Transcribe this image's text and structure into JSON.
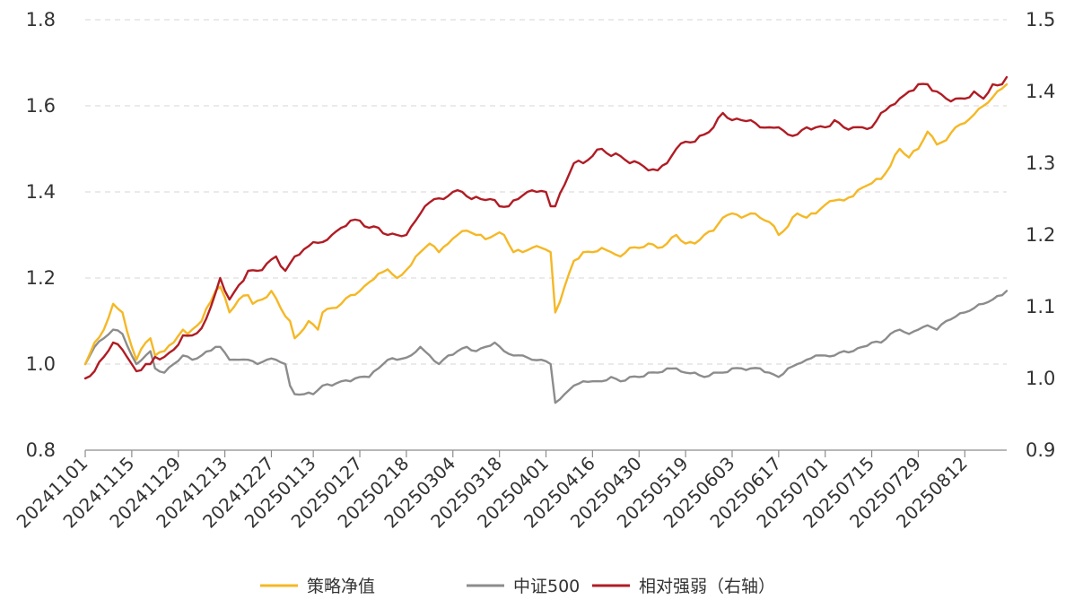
{
  "chart_data": {
    "type": "line",
    "title": "",
    "xlabel": "",
    "ylabel": "",
    "y_left": {
      "range": [
        0.8,
        1.8
      ],
      "ticks": [
        "0.8",
        "1.0",
        "1.2",
        "1.4",
        "1.6",
        "1.8"
      ]
    },
    "y_right": {
      "range": [
        0.9,
        1.5
      ],
      "ticks": [
        "0.9",
        "1.0",
        "1.1",
        "1.2",
        "1.3",
        "1.4",
        "1.5"
      ]
    },
    "grid": "horizontal dashed",
    "legend_position": "bottom",
    "x_tick_labels": [
      "20241101",
      "20241115",
      "20241129",
      "20241213",
      "20241227",
      "20250113",
      "20250127",
      "20250218",
      "20250304",
      "20250318",
      "20250401",
      "20250416",
      "20250430",
      "20250519",
      "20250603",
      "20250617",
      "20250701",
      "20250715",
      "20250729",
      "20250812"
    ],
    "x_tick_index": [
      0,
      10,
      20,
      30,
      40,
      49,
      59,
      69,
      79,
      89,
      99,
      109,
      119,
      129,
      139,
      149,
      159,
      169,
      179,
      189
    ],
    "n_points": 199,
    "series": [
      {
        "name": "策略净值",
        "axis": "left",
        "color": "#f5b825",
        "keypoints": [
          [
            0,
            1.0
          ],
          [
            2,
            1.05
          ],
          [
            4,
            1.08
          ],
          [
            6,
            1.14
          ],
          [
            8,
            1.12
          ],
          [
            10,
            1.04
          ],
          [
            11,
            1.01
          ],
          [
            13,
            1.05
          ],
          [
            14,
            1.06
          ],
          [
            15,
            1.02
          ],
          [
            17,
            1.03
          ],
          [
            19,
            1.05
          ],
          [
            21,
            1.08
          ],
          [
            22,
            1.07
          ],
          [
            25,
            1.1
          ],
          [
            28,
            1.17
          ],
          [
            29,
            1.18
          ],
          [
            31,
            1.12
          ],
          [
            33,
            1.15
          ],
          [
            35,
            1.16
          ],
          [
            36,
            1.14
          ],
          [
            38,
            1.15
          ],
          [
            40,
            1.17
          ],
          [
            42,
            1.13
          ],
          [
            44,
            1.1
          ],
          [
            45,
            1.06
          ],
          [
            46,
            1.07
          ],
          [
            48,
            1.1
          ],
          [
            50,
            1.08
          ],
          [
            51,
            1.12
          ],
          [
            53,
            1.13
          ],
          [
            55,
            1.14
          ],
          [
            57,
            1.16
          ],
          [
            59,
            1.17
          ],
          [
            61,
            1.19
          ],
          [
            63,
            1.21
          ],
          [
            65,
            1.22
          ],
          [
            67,
            1.2
          ],
          [
            70,
            1.23
          ],
          [
            72,
            1.26
          ],
          [
            74,
            1.28
          ],
          [
            76,
            1.26
          ],
          [
            78,
            1.28
          ],
          [
            80,
            1.3
          ],
          [
            82,
            1.31
          ],
          [
            84,
            1.3
          ],
          [
            86,
            1.29
          ],
          [
            88,
            1.3
          ],
          [
            90,
            1.3
          ],
          [
            92,
            1.26
          ],
          [
            94,
            1.26
          ],
          [
            96,
            1.27
          ],
          [
            98,
            1.27
          ],
          [
            100,
            1.26
          ],
          [
            101,
            1.12
          ],
          [
            103,
            1.18
          ],
          [
            105,
            1.24
          ],
          [
            107,
            1.26
          ],
          [
            109,
            1.26
          ],
          [
            111,
            1.27
          ],
          [
            113,
            1.26
          ],
          [
            115,
            1.25
          ],
          [
            117,
            1.27
          ],
          [
            119,
            1.27
          ],
          [
            121,
            1.28
          ],
          [
            123,
            1.27
          ],
          [
            125,
            1.28
          ],
          [
            127,
            1.3
          ],
          [
            129,
            1.28
          ],
          [
            131,
            1.28
          ],
          [
            133,
            1.3
          ],
          [
            135,
            1.31
          ],
          [
            137,
            1.34
          ],
          [
            139,
            1.35
          ],
          [
            141,
            1.34
          ],
          [
            143,
            1.35
          ],
          [
            145,
            1.34
          ],
          [
            147,
            1.33
          ],
          [
            149,
            1.3
          ],
          [
            151,
            1.32
          ],
          [
            153,
            1.35
          ],
          [
            155,
            1.34
          ],
          [
            157,
            1.35
          ],
          [
            159,
            1.37
          ],
          [
            161,
            1.38
          ],
          [
            163,
            1.38
          ],
          [
            165,
            1.39
          ],
          [
            167,
            1.41
          ],
          [
            169,
            1.42
          ],
          [
            171,
            1.43
          ],
          [
            173,
            1.46
          ],
          [
            175,
            1.5
          ],
          [
            177,
            1.48
          ],
          [
            179,
            1.5
          ],
          [
            181,
            1.54
          ],
          [
            183,
            1.51
          ],
          [
            185,
            1.52
          ],
          [
            187,
            1.55
          ],
          [
            189,
            1.56
          ],
          [
            191,
            1.58
          ],
          [
            193,
            1.6
          ],
          [
            195,
            1.62
          ],
          [
            197,
            1.64
          ],
          [
            198,
            1.65
          ]
        ]
      },
      {
        "name": "中证500",
        "axis": "left",
        "color": "#8c8c8c",
        "keypoints": [
          [
            0,
            1.0
          ],
          [
            2,
            1.04
          ],
          [
            4,
            1.06
          ],
          [
            6,
            1.08
          ],
          [
            8,
            1.07
          ],
          [
            10,
            1.02
          ],
          [
            11,
            1.0
          ],
          [
            13,
            1.02
          ],
          [
            14,
            1.03
          ],
          [
            15,
            0.99
          ],
          [
            17,
            0.98
          ],
          [
            19,
            1.0
          ],
          [
            21,
            1.02
          ],
          [
            23,
            1.01
          ],
          [
            25,
            1.02
          ],
          [
            28,
            1.04
          ],
          [
            29,
            1.04
          ],
          [
            31,
            1.01
          ],
          [
            33,
            1.01
          ],
          [
            35,
            1.01
          ],
          [
            37,
            1.0
          ],
          [
            39,
            1.01
          ],
          [
            41,
            1.01
          ],
          [
            43,
            1.0
          ],
          [
            44,
            0.95
          ],
          [
            45,
            0.93
          ],
          [
            47,
            0.93
          ],
          [
            49,
            0.93
          ],
          [
            51,
            0.95
          ],
          [
            53,
            0.95
          ],
          [
            55,
            0.96
          ],
          [
            57,
            0.96
          ],
          [
            59,
            0.97
          ],
          [
            61,
            0.97
          ],
          [
            63,
            0.99
          ],
          [
            65,
            1.01
          ],
          [
            67,
            1.01
          ],
          [
            70,
            1.02
          ],
          [
            72,
            1.04
          ],
          [
            74,
            1.02
          ],
          [
            76,
            1.0
          ],
          [
            78,
            1.02
          ],
          [
            80,
            1.03
          ],
          [
            82,
            1.04
          ],
          [
            84,
            1.03
          ],
          [
            86,
            1.04
          ],
          [
            88,
            1.05
          ],
          [
            90,
            1.03
          ],
          [
            92,
            1.02
          ],
          [
            94,
            1.02
          ],
          [
            96,
            1.01
          ],
          [
            98,
            1.01
          ],
          [
            100,
            1.0
          ],
          [
            101,
            0.91
          ],
          [
            103,
            0.93
          ],
          [
            105,
            0.95
          ],
          [
            107,
            0.96
          ],
          [
            109,
            0.96
          ],
          [
            111,
            0.96
          ],
          [
            113,
            0.97
          ],
          [
            115,
            0.96
          ],
          [
            117,
            0.97
          ],
          [
            119,
            0.97
          ],
          [
            121,
            0.98
          ],
          [
            123,
            0.98
          ],
          [
            125,
            0.99
          ],
          [
            127,
            0.99
          ],
          [
            129,
            0.98
          ],
          [
            131,
            0.98
          ],
          [
            133,
            0.97
          ],
          [
            135,
            0.98
          ],
          [
            137,
            0.98
          ],
          [
            139,
            0.99
          ],
          [
            141,
            0.99
          ],
          [
            143,
            0.99
          ],
          [
            145,
            0.99
          ],
          [
            147,
            0.98
          ],
          [
            149,
            0.97
          ],
          [
            151,
            0.99
          ],
          [
            153,
            1.0
          ],
          [
            155,
            1.01
          ],
          [
            157,
            1.02
          ],
          [
            159,
            1.02
          ],
          [
            161,
            1.02
          ],
          [
            163,
            1.03
          ],
          [
            165,
            1.03
          ],
          [
            167,
            1.04
          ],
          [
            169,
            1.05
          ],
          [
            171,
            1.05
          ],
          [
            173,
            1.07
          ],
          [
            175,
            1.08
          ],
          [
            177,
            1.07
          ],
          [
            179,
            1.08
          ],
          [
            181,
            1.09
          ],
          [
            183,
            1.08
          ],
          [
            185,
            1.1
          ],
          [
            187,
            1.11
          ],
          [
            189,
            1.12
          ],
          [
            191,
            1.13
          ],
          [
            193,
            1.14
          ],
          [
            195,
            1.15
          ],
          [
            197,
            1.16
          ],
          [
            198,
            1.17
          ]
        ]
      },
      {
        "name": "相对强弱（右轴）",
        "axis": "right",
        "color": "#b01c24",
        "keypoints": [
          [
            0,
            1.0
          ],
          [
            2,
            1.01
          ],
          [
            4,
            1.03
          ],
          [
            6,
            1.05
          ],
          [
            8,
            1.04
          ],
          [
            10,
            1.02
          ],
          [
            11,
            1.01
          ],
          [
            13,
            1.02
          ],
          [
            14,
            1.02
          ],
          [
            15,
            1.03
          ],
          [
            17,
            1.03
          ],
          [
            19,
            1.04
          ],
          [
            21,
            1.06
          ],
          [
            23,
            1.06
          ],
          [
            25,
            1.07
          ],
          [
            27,
            1.1
          ],
          [
            29,
            1.14
          ],
          [
            31,
            1.11
          ],
          [
            33,
            1.13
          ],
          [
            35,
            1.15
          ],
          [
            37,
            1.15
          ],
          [
            39,
            1.16
          ],
          [
            41,
            1.17
          ],
          [
            43,
            1.15
          ],
          [
            45,
            1.17
          ],
          [
            47,
            1.18
          ],
          [
            49,
            1.19
          ],
          [
            51,
            1.19
          ],
          [
            53,
            1.2
          ],
          [
            55,
            1.21
          ],
          [
            57,
            1.22
          ],
          [
            59,
            1.22
          ],
          [
            61,
            1.21
          ],
          [
            63,
            1.21
          ],
          [
            65,
            1.2
          ],
          [
            67,
            1.2
          ],
          [
            69,
            1.2
          ],
          [
            71,
            1.22
          ],
          [
            73,
            1.24
          ],
          [
            75,
            1.25
          ],
          [
            77,
            1.25
          ],
          [
            79,
            1.26
          ],
          [
            81,
            1.26
          ],
          [
            83,
            1.25
          ],
          [
            85,
            1.25
          ],
          [
            87,
            1.25
          ],
          [
            89,
            1.24
          ],
          [
            91,
            1.24
          ],
          [
            93,
            1.25
          ],
          [
            95,
            1.26
          ],
          [
            97,
            1.26
          ],
          [
            99,
            1.26
          ],
          [
            100,
            1.24
          ],
          [
            101,
            1.24
          ],
          [
            103,
            1.27
          ],
          [
            105,
            1.3
          ],
          [
            107,
            1.3
          ],
          [
            109,
            1.31
          ],
          [
            111,
            1.32
          ],
          [
            113,
            1.31
          ],
          [
            115,
            1.31
          ],
          [
            117,
            1.3
          ],
          [
            119,
            1.3
          ],
          [
            121,
            1.29
          ],
          [
            123,
            1.29
          ],
          [
            125,
            1.3
          ],
          [
            127,
            1.32
          ],
          [
            129,
            1.33
          ],
          [
            131,
            1.33
          ],
          [
            133,
            1.34
          ],
          [
            135,
            1.35
          ],
          [
            137,
            1.37
          ],
          [
            139,
            1.36
          ],
          [
            141,
            1.36
          ],
          [
            143,
            1.36
          ],
          [
            145,
            1.35
          ],
          [
            147,
            1.35
          ],
          [
            149,
            1.35
          ],
          [
            151,
            1.34
          ],
          [
            153,
            1.34
          ],
          [
            155,
            1.35
          ],
          [
            157,
            1.35
          ],
          [
            159,
            1.35
          ],
          [
            161,
            1.36
          ],
          [
            163,
            1.35
          ],
          [
            165,
            1.35
          ],
          [
            167,
            1.35
          ],
          [
            169,
            1.35
          ],
          [
            171,
            1.37
          ],
          [
            173,
            1.38
          ],
          [
            175,
            1.39
          ],
          [
            177,
            1.4
          ],
          [
            179,
            1.41
          ],
          [
            181,
            1.41
          ],
          [
            183,
            1.4
          ],
          [
            185,
            1.39
          ],
          [
            187,
            1.39
          ],
          [
            189,
            1.39
          ],
          [
            191,
            1.4
          ],
          [
            193,
            1.39
          ],
          [
            195,
            1.41
          ],
          [
            197,
            1.41
          ],
          [
            198,
            1.42
          ]
        ]
      }
    ]
  }
}
